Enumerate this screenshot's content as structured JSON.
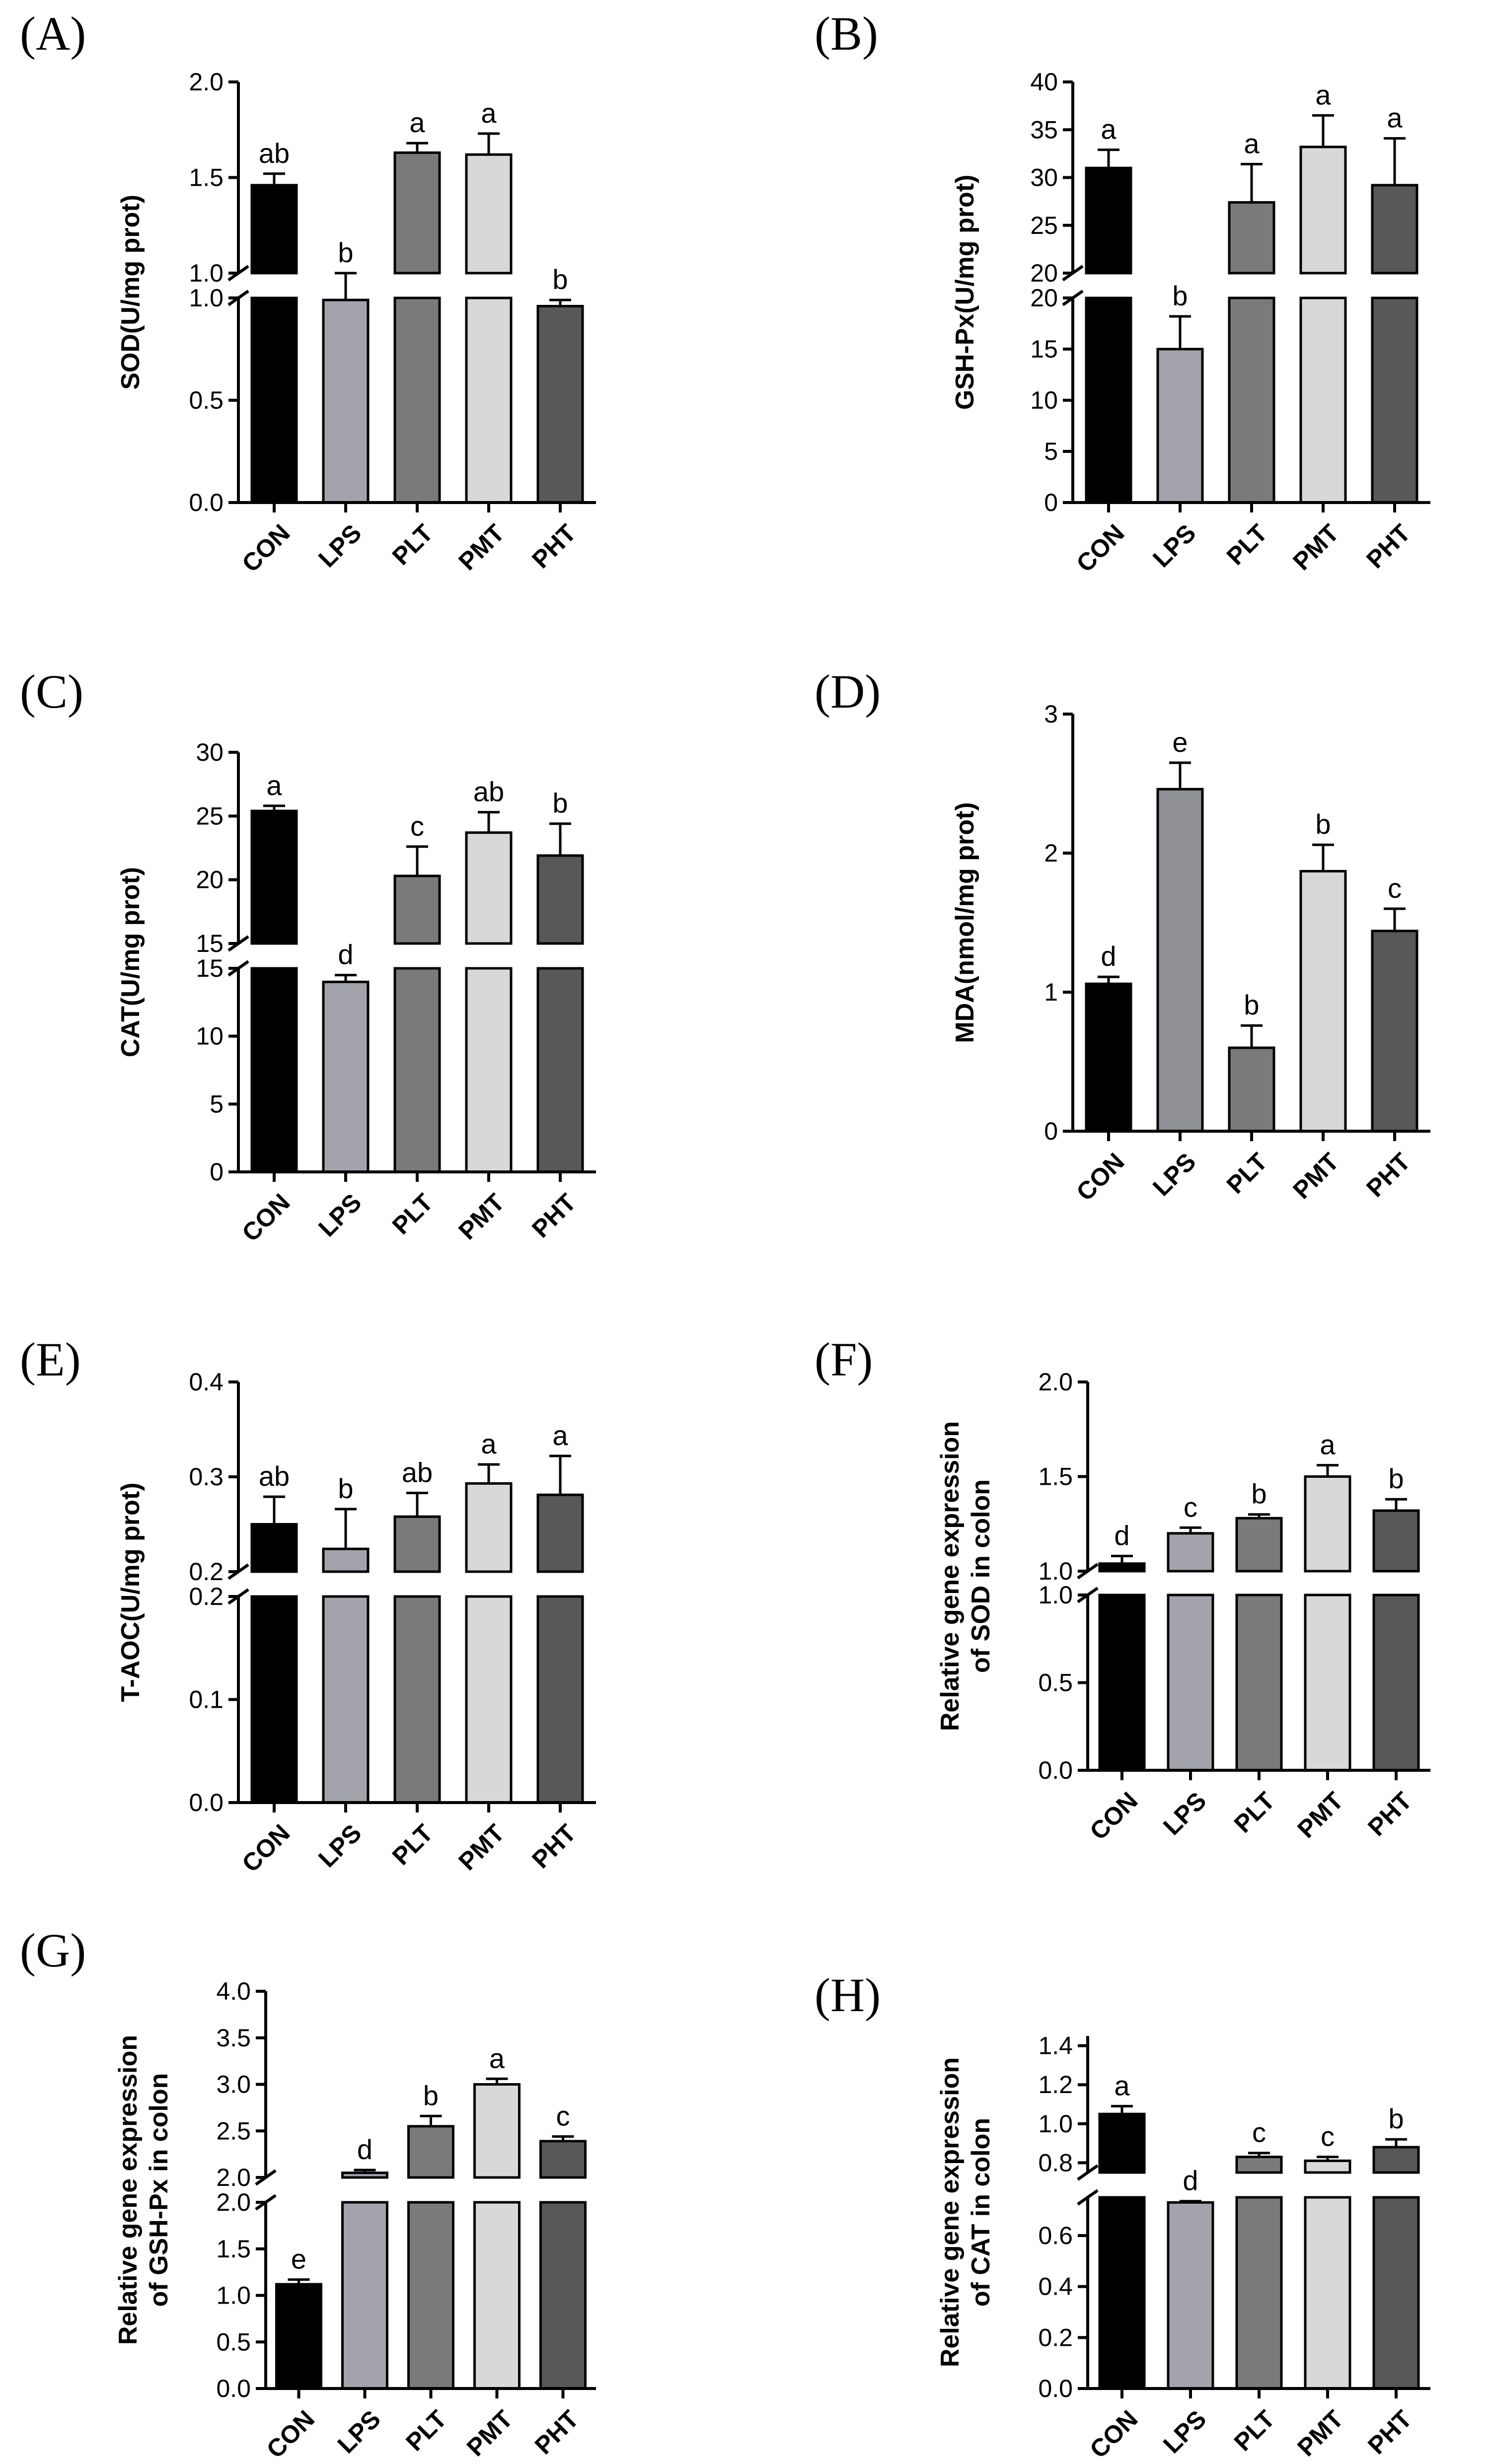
{
  "chart_data": [
    {
      "type": "bar",
      "panel": "(A)",
      "ylabel": "SOD(U/mg prot)",
      "categories": [
        "CON",
        "LPS",
        "PLT",
        "PMT",
        "PHT"
      ],
      "values": [
        1.46,
        0.99,
        1.63,
        1.62,
        0.96
      ],
      "errors": [
        0.06,
        0.01,
        0.05,
        0.11,
        0.03
      ],
      "letters": [
        "ab",
        "b",
        "a",
        "a",
        "b"
      ],
      "colors": [
        "#000000",
        "#a3a3ab",
        "#7a7a7a",
        "#d8d8d8",
        "#585858"
      ],
      "axis_break": true,
      "lower_ylim": [
        0,
        1.0
      ],
      "lower_ticks": [
        "0.0",
        "0.5",
        "1.0"
      ],
      "lower_tick_values": [
        0,
        0.5,
        1.0
      ],
      "upper_ylim": [
        1.0,
        2.0
      ],
      "upper_ticks": [
        "1.0",
        "1.5",
        "2.0"
      ],
      "upper_tick_values": [
        1.0,
        1.5,
        2.0
      ]
    },
    {
      "type": "bar",
      "panel": "(B)",
      "ylabel": "GSH-Px(U/mg prot)",
      "categories": [
        "CON",
        "LPS",
        "PLT",
        "PMT",
        "PHT"
      ],
      "values": [
        31.0,
        15.0,
        27.4,
        33.2,
        29.2
      ],
      "errors": [
        1.9,
        3.2,
        4.0,
        3.3,
        4.9
      ],
      "letters": [
        "a",
        "b",
        "a",
        "a",
        "a"
      ],
      "colors": [
        "#000000",
        "#a3a3ab",
        "#7a7a7a",
        "#d8d8d8",
        "#585858"
      ],
      "axis_break": true,
      "lower_ylim": [
        0,
        20
      ],
      "lower_ticks": [
        "0",
        "5",
        "10",
        "15",
        "20"
      ],
      "lower_tick_values": [
        0,
        5,
        10,
        15,
        20
      ],
      "upper_ylim": [
        20,
        40
      ],
      "upper_ticks": [
        "20",
        "25",
        "30",
        "35",
        "40"
      ],
      "upper_tick_values": [
        20,
        25,
        30,
        35,
        40
      ]
    },
    {
      "type": "bar",
      "panel": "(C)",
      "ylabel": "CAT(U/mg prot)",
      "categories": [
        "CON",
        "LPS",
        "PLT",
        "PMT",
        "PHT"
      ],
      "values": [
        25.4,
        14.0,
        20.3,
        23.7,
        21.9
      ],
      "errors": [
        0.4,
        0.5,
        2.3,
        1.6,
        2.5
      ],
      "letters": [
        "a",
        "d",
        "c",
        "ab",
        "b"
      ],
      "colors": [
        "#000000",
        "#a3a3ab",
        "#7a7a7a",
        "#d8d8d8",
        "#585858"
      ],
      "axis_break": true,
      "lower_ylim": [
        0,
        15
      ],
      "lower_ticks": [
        "0",
        "5",
        "10",
        "15"
      ],
      "lower_tick_values": [
        0,
        5,
        10,
        15
      ],
      "upper_ylim": [
        15,
        30
      ],
      "upper_ticks": [
        "15",
        "20",
        "25",
        "30"
      ],
      "upper_tick_values": [
        15,
        20,
        25,
        30
      ]
    },
    {
      "type": "bar",
      "panel": "(D)",
      "ylabel": "MDA(nmol/mg prot)",
      "categories": [
        "CON",
        "LPS",
        "PLT",
        "PMT",
        "PHT"
      ],
      "values": [
        1.06,
        2.46,
        0.6,
        1.87,
        1.44
      ],
      "errors": [
        0.05,
        0.19,
        0.16,
        0.19,
        0.16
      ],
      "letters": [
        "d",
        "e",
        "b",
        "b",
        "c"
      ],
      "colors": [
        "#000000",
        "#8f8f96",
        "#7a7a7a",
        "#d8d8d8",
        "#585858"
      ],
      "axis_break": false,
      "ylim": [
        0,
        3
      ],
      "ticks": [
        "0",
        "1",
        "2",
        "3"
      ],
      "tick_values": [
        0,
        1,
        2,
        3
      ]
    },
    {
      "type": "bar",
      "panel": "(E)",
      "ylabel": "T-AOC(U/mg prot)",
      "categories": [
        "CON",
        "LPS",
        "PLT",
        "PMT",
        "PHT"
      ],
      "values": [
        0.25,
        0.224,
        0.258,
        0.293,
        0.281
      ],
      "errors": [
        0.029,
        0.042,
        0.025,
        0.02,
        0.041
      ],
      "letters": [
        "ab",
        "b",
        "ab",
        "a",
        "a"
      ],
      "colors": [
        "#000000",
        "#a3a3ab",
        "#7a7a7a",
        "#d8d8d8",
        "#585858"
      ],
      "axis_break": true,
      "lower_ylim": [
        0,
        0.2
      ],
      "lower_ticks": [
        "0.0",
        "0.1",
        "0.2"
      ],
      "lower_tick_values": [
        0,
        0.1,
        0.2
      ],
      "upper_ylim": [
        0.2,
        0.4
      ],
      "upper_ticks": [
        "0.2",
        "0.3",
        "0.4"
      ],
      "upper_tick_values": [
        0.2,
        0.3,
        0.4
      ]
    },
    {
      "type": "bar",
      "panel": "(F)",
      "ylabel": [
        "Relative gene expression",
        "of SOD in colon"
      ],
      "categories": [
        "CON",
        "LPS",
        "PLT",
        "PMT",
        "PHT"
      ],
      "values": [
        1.04,
        1.2,
        1.28,
        1.5,
        1.32
      ],
      "errors": [
        0.04,
        0.03,
        0.02,
        0.06,
        0.06
      ],
      "letters": [
        "d",
        "c",
        "b",
        "a",
        "b"
      ],
      "colors": [
        "#000000",
        "#a3a3ab",
        "#7a7a7a",
        "#d8d8d8",
        "#585858"
      ],
      "axis_break": true,
      "lower_ylim": [
        0,
        1.0
      ],
      "lower_ticks": [
        "0.0",
        "0.5",
        "1.0"
      ],
      "lower_tick_values": [
        0,
        0.5,
        1.0
      ],
      "upper_ylim": [
        1.0,
        2.0
      ],
      "upper_ticks": [
        "1.0",
        "1.5",
        "2.0"
      ],
      "upper_tick_values": [
        1.0,
        1.5,
        2.0
      ]
    },
    {
      "type": "bar",
      "panel": "(G)",
      "ylabel": [
        "Relative gene expression",
        "of GSH-Px in colon"
      ],
      "categories": [
        "CON",
        "LPS",
        "PLT",
        "PMT",
        "PHT"
      ],
      "values": [
        1.12,
        2.05,
        2.55,
        3.0,
        2.39
      ],
      "errors": [
        0.05,
        0.03,
        0.11,
        0.06,
        0.05
      ],
      "letters": [
        "e",
        "d",
        "b",
        "a",
        "c"
      ],
      "colors": [
        "#000000",
        "#a3a3ab",
        "#7a7a7a",
        "#d8d8d8",
        "#585858"
      ],
      "axis_break": true,
      "lower_ylim": [
        0,
        2.0
      ],
      "lower_ticks": [
        "0.0",
        "0.5",
        "1.0",
        "1.5",
        "2.0"
      ],
      "lower_tick_values": [
        0,
        0.5,
        1.0,
        1.5,
        2.0
      ],
      "upper_ylim": [
        2.0,
        4.0
      ],
      "upper_ticks": [
        "2.0",
        "2.5",
        "3.0",
        "3.5",
        "4.0"
      ],
      "upper_tick_values": [
        2.0,
        2.5,
        3.0,
        3.5,
        4.0
      ]
    },
    {
      "type": "bar",
      "panel": "(H)",
      "ylabel": [
        "Relative gene expression",
        "of CAT in colon"
      ],
      "categories": [
        "CON",
        "LPS",
        "PLT",
        "PMT",
        "PHT"
      ],
      "values": [
        1.05,
        0.73,
        0.83,
        0.81,
        0.88
      ],
      "errors": [
        0.04,
        0.005,
        0.02,
        0.02,
        0.04
      ],
      "letters": [
        "a",
        "d",
        "c",
        "c",
        "b"
      ],
      "colors": [
        "#000000",
        "#a3a3ab",
        "#7a7a7a",
        "#d8d8d8",
        "#585858"
      ],
      "axis_break": true,
      "lower_ylim": [
        0,
        0.75
      ],
      "lower_ticks": [
        "0.0",
        "0.2",
        "0.4",
        "0.6"
      ],
      "lower_tick_values": [
        0,
        0.2,
        0.4,
        0.6
      ],
      "upper_ylim": [
        0.75,
        1.45
      ],
      "upper_ticks": [
        "0.8",
        "1.0",
        "1.2",
        "1.4"
      ],
      "upper_tick_values": [
        0.8,
        1.0,
        1.2,
        1.4
      ]
    }
  ]
}
